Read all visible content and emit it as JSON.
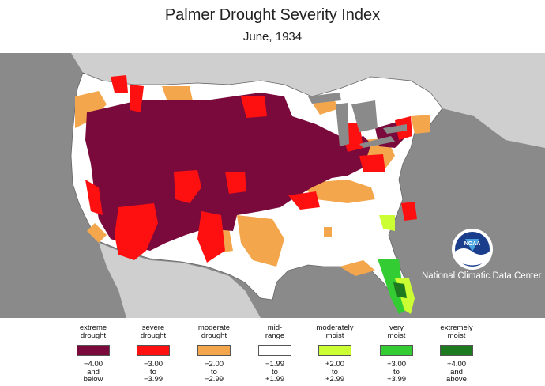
{
  "title": "Palmer Drought Severity Index",
  "subtitle": "June, 1934",
  "agency": "National Climatic Data Center",
  "logo_text": "NOAA",
  "colors": {
    "extreme_drought": "#7a0a3c",
    "severe_drought": "#ff1010",
    "moderate_drought": "#f4a64c",
    "mid_range": "#ffffff",
    "moderately_moist": "#ccff33",
    "very_moist": "#33cc33",
    "extremely_moist": "#1e7a1e",
    "background": "#8a8a8a",
    "neighbor_land": "#cfcfcf"
  },
  "legend": [
    {
      "label": [
        "extreme",
        "drought"
      ],
      "range": [
        "−4.00",
        "and",
        "below"
      ],
      "color": "#7a0a3c"
    },
    {
      "label": [
        "severe",
        "drought"
      ],
      "range": [
        "−3.00",
        "to",
        "−3.99"
      ],
      "color": "#ff1010"
    },
    {
      "label": [
        "moderate",
        "drought"
      ],
      "range": [
        "−2.00",
        "to",
        "−2.99"
      ],
      "color": "#f4a64c"
    },
    {
      "label": [
        "mid-",
        "range"
      ],
      "range": [
        "−1.99",
        "to",
        "+1.99"
      ],
      "color": "#ffffff"
    },
    {
      "label": [
        "moderately",
        "moist"
      ],
      "range": [
        "+2.00",
        "to",
        "+2.99"
      ],
      "color": "#ccff33"
    },
    {
      "label": [
        "very",
        "moist"
      ],
      "range": [
        "+3.00",
        "to",
        "+3.99"
      ],
      "color": "#33cc33"
    },
    {
      "label": [
        "extremely",
        "moist"
      ],
      "range": [
        "+4.00",
        "and",
        "above"
      ],
      "color": "#1e7a1e"
    }
  ]
}
